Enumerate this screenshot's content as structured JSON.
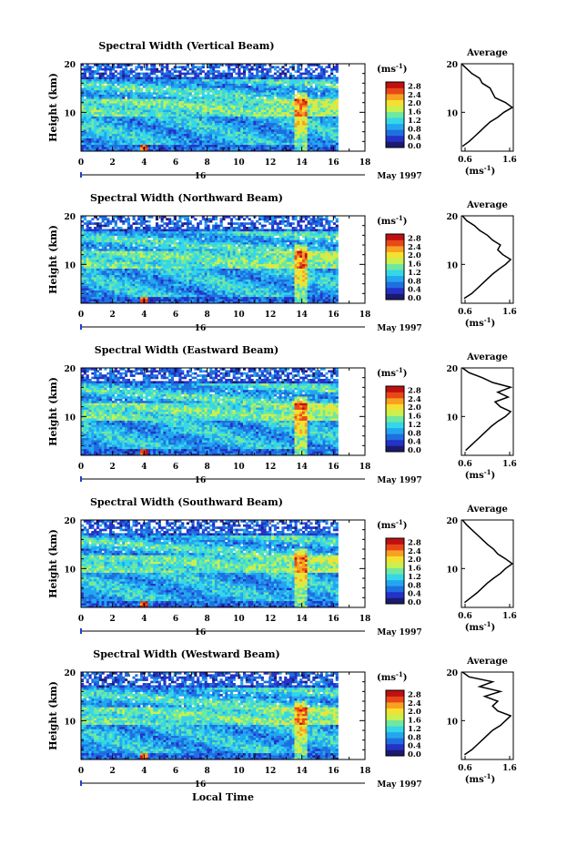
{
  "figure": {
    "month_label": "May 1997",
    "xlabel": "Local Time",
    "ylabel": "Height (km)",
    "date_label": "16",
    "colorbar_unit": "(ms",
    "colorbar_unit_sup": "-1",
    "colorbar_unit_close": ")",
    "colorbar_ticks": [
      "0.0",
      "0.4",
      "0.8",
      "1.2",
      "1.6",
      "2.0",
      "2.4",
      "2.8"
    ],
    "avg_title": "Average",
    "avg_xlabel": "(ms",
    "avg_xticks": [
      "0.6",
      "1.6"
    ],
    "colormap": [
      "#1a1a6e",
      "#2432c8",
      "#1f6fe0",
      "#22a6f0",
      "#35d6e8",
      "#6fe8a0",
      "#c8f050",
      "#f5e030",
      "#f8a020",
      "#e84818",
      "#c01010"
    ]
  },
  "chart_data": [
    {
      "type": "heatmap",
      "title": "Spectral Width (Vertical Beam)",
      "xlabel": "Local Time",
      "ylabel": "Height (km)",
      "xlim": [
        0,
        18
      ],
      "ylim": [
        2,
        20
      ],
      "xticks": [
        0,
        2,
        4,
        6,
        8,
        10,
        12,
        14,
        16,
        18
      ],
      "yticks": [
        10,
        20
      ],
      "colorbar": {
        "label": "(ms-1)",
        "range": [
          0.0,
          2.8
        ],
        "ticks": [
          0.0,
          0.4,
          0.8,
          1.2,
          1.6,
          2.0,
          2.4,
          2.8
        ]
      },
      "data_end_hour": 16.3,
      "average_profile": {
        "title": "Average",
        "xlabel": "(ms-1)",
        "xlim": [
          0.6,
          1.6
        ],
        "height": [
          3,
          4,
          5,
          6,
          7,
          8,
          9,
          10,
          11,
          12,
          13,
          14,
          15,
          16,
          17,
          18,
          19,
          20
        ],
        "width": [
          0.62,
          0.75,
          0.85,
          0.95,
          1.05,
          1.15,
          1.3,
          1.42,
          1.58,
          1.45,
          1.25,
          1.2,
          1.15,
          1.0,
          0.95,
          0.8,
          0.7,
          0.6
        ]
      }
    },
    {
      "type": "heatmap",
      "title": "Spectral Width (Northward Beam)",
      "xlabel": "Local Time",
      "ylabel": "Height (km)",
      "xlim": [
        0,
        18
      ],
      "ylim": [
        2,
        20
      ],
      "xticks": [
        0,
        2,
        4,
        6,
        8,
        10,
        12,
        14,
        16,
        18
      ],
      "yticks": [
        10,
        20
      ],
      "colorbar": {
        "label": "(ms-1)",
        "range": [
          0.0,
          2.8
        ],
        "ticks": [
          0.0,
          0.4,
          0.8,
          1.2,
          1.6,
          2.0,
          2.4,
          2.8
        ]
      },
      "data_end_hour": 16.3,
      "average_profile": {
        "title": "Average",
        "xlabel": "(ms-1)",
        "xlim": [
          0.6,
          1.6
        ],
        "height": [
          3,
          4,
          5,
          6,
          7,
          8,
          9,
          10,
          11,
          12,
          13,
          14,
          15,
          16,
          17,
          18,
          19,
          20
        ],
        "width": [
          0.65,
          0.8,
          0.9,
          1.0,
          1.1,
          1.2,
          1.32,
          1.45,
          1.55,
          1.4,
          1.3,
          1.35,
          1.2,
          1.1,
          0.95,
          0.85,
          0.7,
          0.62
        ]
      }
    },
    {
      "type": "heatmap",
      "title": "Spectral Width (Eastward Beam)",
      "xlabel": "Local Time",
      "ylabel": "Height (km)",
      "xlim": [
        0,
        18
      ],
      "ylim": [
        2,
        20
      ],
      "xticks": [
        0,
        2,
        4,
        6,
        8,
        10,
        12,
        14,
        16,
        18
      ],
      "yticks": [
        10,
        20
      ],
      "colorbar": {
        "label": "(ms-1)",
        "range": [
          0.0,
          2.8
        ],
        "ticks": [
          0.0,
          0.4,
          0.8,
          1.2,
          1.6,
          2.0,
          2.4,
          2.8
        ]
      },
      "data_end_hour": 16.3,
      "average_profile": {
        "title": "Average",
        "xlabel": "(ms-1)",
        "xlim": [
          0.6,
          1.6
        ],
        "height": [
          3,
          4,
          5,
          6,
          7,
          8,
          9,
          10,
          11,
          12,
          13,
          14,
          15,
          16,
          17,
          18,
          19,
          20
        ],
        "width": [
          0.68,
          0.78,
          0.88,
          0.98,
          1.08,
          1.18,
          1.3,
          1.45,
          1.55,
          1.35,
          1.25,
          1.5,
          1.3,
          1.55,
          1.2,
          1.0,
          0.75,
          0.62
        ]
      }
    },
    {
      "type": "heatmap",
      "title": "Spectral Width (Southward Beam)",
      "xlabel": "Local Time",
      "ylabel": "Height (km)",
      "xlim": [
        0,
        18
      ],
      "ylim": [
        2,
        20
      ],
      "xticks": [
        0,
        2,
        4,
        6,
        8,
        10,
        12,
        14,
        16,
        18
      ],
      "yticks": [
        10,
        20
      ],
      "colorbar": {
        "label": "(ms-1)",
        "range": [
          0.0,
          2.8
        ],
        "ticks": [
          0.0,
          0.4,
          0.8,
          1.2,
          1.6,
          2.0,
          2.4,
          2.8
        ]
      },
      "data_end_hour": 16.3,
      "average_profile": {
        "title": "Average",
        "xlabel": "(ms-1)",
        "xlim": [
          0.6,
          1.6
        ],
        "height": [
          3,
          4,
          5,
          6,
          7,
          8,
          9,
          10,
          11,
          12,
          13,
          14,
          15,
          16,
          17,
          18,
          19,
          20
        ],
        "width": [
          0.66,
          0.78,
          0.9,
          1.0,
          1.1,
          1.22,
          1.35,
          1.45,
          1.58,
          1.45,
          1.3,
          1.22,
          1.1,
          1.0,
          0.9,
          0.8,
          0.7,
          0.62
        ]
      }
    },
    {
      "type": "heatmap",
      "title": "Spectral Width (Westward Beam)",
      "xlabel": "Local Time",
      "ylabel": "Height (km)",
      "xlim": [
        0,
        18
      ],
      "ylim": [
        2,
        20
      ],
      "xticks": [
        0,
        2,
        4,
        6,
        8,
        10,
        12,
        14,
        16,
        18
      ],
      "yticks": [
        10,
        20
      ],
      "colorbar": {
        "label": "(ms-1)",
        "range": [
          0.0,
          2.8
        ],
        "ticks": [
          0.0,
          0.4,
          0.8,
          1.2,
          1.6,
          2.0,
          2.4,
          2.8
        ]
      },
      "data_end_hour": 16.3,
      "average_profile": {
        "title": "Average",
        "xlabel": "(ms-1)",
        "xlim": [
          0.6,
          1.6
        ],
        "height": [
          3,
          4,
          5,
          6,
          7,
          8,
          9,
          10,
          11,
          12,
          13,
          14,
          15,
          16,
          17,
          18,
          19,
          20
        ],
        "width": [
          0.66,
          0.8,
          0.9,
          1.0,
          1.1,
          1.2,
          1.35,
          1.45,
          1.55,
          1.3,
          1.2,
          1.3,
          1.05,
          1.35,
          0.95,
          1.2,
          0.75,
          0.62
        ]
      }
    }
  ]
}
